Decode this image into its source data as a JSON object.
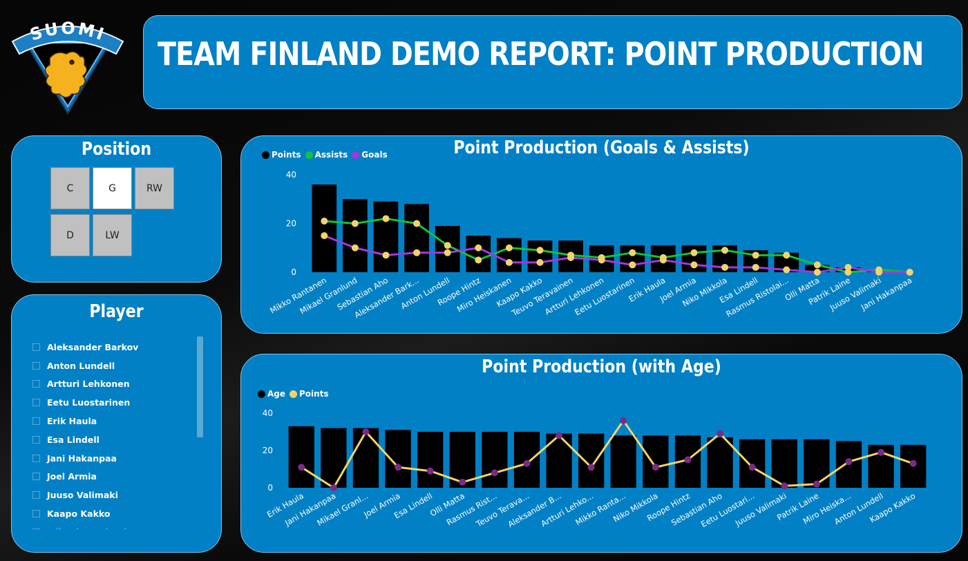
{
  "header": {
    "title": "TEAM FINLAND DEMO REPORT: POINT PRODUCTION"
  },
  "logo": {
    "text": "SUOMI"
  },
  "position_slicer": {
    "title": "Position",
    "options": [
      "C",
      "G",
      "RW",
      "D",
      "LW"
    ],
    "selected": "G"
  },
  "player_slicer": {
    "title": "Player",
    "items": [
      "Aleksander Barkov",
      "Anton Lundell",
      "Artturi Lehkonen",
      "Eetu Luostarinen",
      "Erik Haula",
      "Esa Lindell",
      "Jani Hakanpaa",
      "Joel Armia",
      "Juuso Valimaki",
      "Kaapo Kakko",
      "Mikael Granlund"
    ]
  },
  "colors": {
    "panel_bg": "#0180c5",
    "points_bar": "#000000",
    "assists_line": "#13c13a",
    "goals_line": "#a238e0",
    "marker_yellow": "#f2d36b",
    "marker_purple": "#7b2b86"
  },
  "chart_data": [
    {
      "type": "bar",
      "title": "Point Production (Goals & Assists)",
      "legend": [
        "Points",
        "Assists",
        "Goals"
      ],
      "categories": [
        "Mikko Rantanen",
        "Mikael Granlund",
        "Sebastian Aho",
        "Aleksander Bark...",
        "Anton Lundell",
        "Roope Hintz",
        "Miro Heiskanen",
        "Kaapo Kakko",
        "Teuvo Teravainen",
        "Artturi Lehkonen",
        "Eetu Luostarinen",
        "Erik Haula",
        "Joel Armia",
        "Niko Mikkola",
        "Esa Lindell",
        "Rasmus Ristolai...",
        "Olli Matta",
        "Patrik Laine",
        "Juuso Valimaki",
        "Jani Hakanpaa"
      ],
      "series": [
        {
          "name": "Points",
          "kind": "bar",
          "values": [
            36,
            30,
            29,
            28,
            19,
            15,
            14,
            13,
            13,
            11,
            11,
            11,
            11,
            11,
            9,
            8,
            3,
            2,
            1,
            0
          ]
        },
        {
          "name": "Assists",
          "kind": "line",
          "values": [
            21,
            20,
            22,
            20,
            11,
            5,
            10,
            9,
            7,
            6,
            8,
            6,
            8,
            9,
            7,
            7,
            3,
            0,
            1,
            0
          ]
        },
        {
          "name": "Goals",
          "kind": "line",
          "values": [
            15,
            10,
            7,
            8,
            8,
            10,
            4,
            4,
            6,
            5,
            3,
            5,
            3,
            2,
            2,
            1,
            0,
            2,
            0,
            0
          ]
        }
      ],
      "yticks": [
        0,
        20,
        40
      ],
      "ylim": [
        0,
        40
      ]
    },
    {
      "type": "bar",
      "title": "Point Production (with Age)",
      "legend": [
        "Age",
        "Points"
      ],
      "categories": [
        "Erik Haula",
        "Jani Hakanpaa",
        "Mikael Granl...",
        "Joel Armia",
        "Esa Lindell",
        "Olli Matta",
        "Rasmus Rist...",
        "Teuvo Terava...",
        "Aleksander B...",
        "Artturi Lehko...",
        "Mikko Ranta...",
        "Niko Mikkola",
        "Roope Hintz",
        "Sebastian Aho",
        "Eetu Luostari...",
        "Juuso Valimaki",
        "Patrik Laine",
        "Miro Heiska...",
        "Anton Lundell",
        "Kaapo Kakko"
      ],
      "series": [
        {
          "name": "Age",
          "kind": "bar",
          "values": [
            33,
            32,
            32,
            31,
            30,
            30,
            30,
            30,
            29,
            29,
            28,
            28,
            28,
            27,
            26,
            26,
            26,
            25,
            23,
            23
          ]
        },
        {
          "name": "Points",
          "kind": "line",
          "values": [
            11,
            0,
            30,
            11,
            9,
            3,
            8,
            13,
            28,
            11,
            36,
            11,
            15,
            29,
            11,
            1,
            2,
            14,
            19,
            13
          ]
        }
      ],
      "yticks": [
        0,
        20,
        40
      ],
      "ylim": [
        0,
        40
      ]
    }
  ]
}
